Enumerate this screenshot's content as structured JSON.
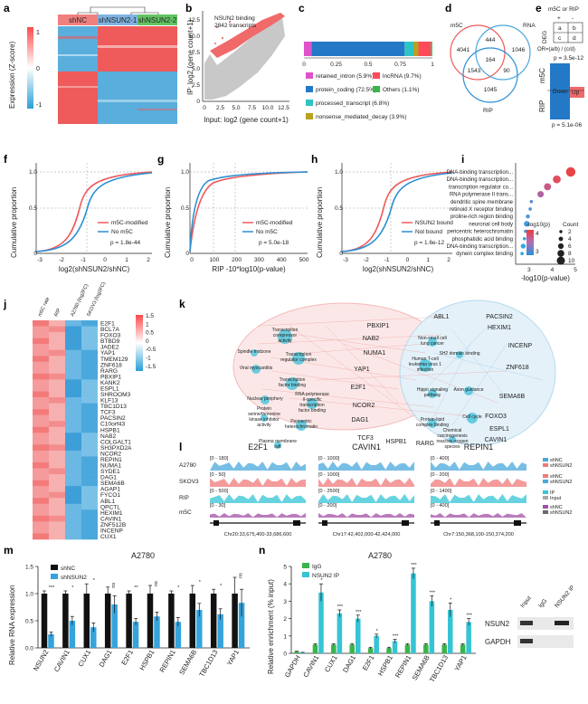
{
  "panels": {
    "a": {
      "letter": "a",
      "groups": [
        "shNC",
        "shNSUN2-1",
        "shNSUN2-2"
      ],
      "group_colors": [
        "#f08080",
        "#7fb3e0",
        "#62c462"
      ],
      "colorbar_label": "Expression (Z-score)",
      "colorbar_ticks": [
        "1",
        "0",
        "-1"
      ]
    },
    "b": {
      "letter": "b",
      "annotation_line1": "NSUN2 binding",
      "annotation_line2": "2842 transcripts",
      "xlabel": "Input: log2 (gene count+1)",
      "ylabel": "IP: log2 (gene count+1)",
      "xticks": [
        "0",
        "2.5",
        "5.0",
        "7.5",
        "10.0",
        "12.5"
      ],
      "yticks": [
        "0",
        "2.5",
        "5.0",
        "7.5",
        "10.0",
        "12.5"
      ]
    },
    "c": {
      "letter": "c",
      "xticks": [
        "0",
        "0.25",
        "0.5",
        "0.75",
        "1"
      ],
      "legend": [
        {
          "label": "retained_intron (5.9%)",
          "color": "#e052c9"
        },
        {
          "label": "lncRNA (9.7%)",
          "color": "#ff4a5a"
        },
        {
          "label": "protein_coding (72.5%)",
          "color": "#2479c6"
        },
        {
          "label": "Others (1.1%)",
          "color": "#3ab44b"
        },
        {
          "label": "processed_transcript (6.8%)",
          "color": "#2ec4c4"
        },
        {
          "label": "nonsense_mediated_decay (3.9%)",
          "color": "#b9a21e"
        }
      ]
    },
    "d": {
      "letter": "d",
      "sets": [
        "m5C",
        "RNA",
        "RIP"
      ],
      "numbers": [
        "4041",
        "444",
        "1046",
        "164",
        "1543",
        "90",
        "1045"
      ]
    },
    "e": {
      "letter": "e",
      "header": "m5C or RIP",
      "signs": [
        "+",
        "-"
      ],
      "row_label": "DEG",
      "cells": [
        "a",
        "b",
        "c",
        "d"
      ],
      "formula": "OR=(a/b) / (c/d)",
      "p_top": "p = 3.5e-12",
      "p_bottom": "p = 5.1e-06",
      "down": "Down",
      "up": "Up",
      "ylabel_top": "m5C",
      "ylabel_bottom": "RIP"
    },
    "f": {
      "letter": "f",
      "ylabel": "Cumulative proportion",
      "xlabel": "log2(shNSUN2/shNC)",
      "yticks": [
        "0",
        "0.5",
        "1.0"
      ],
      "xticks": [
        "-3",
        "-2",
        "-1",
        "0",
        "1",
        "2"
      ],
      "legend": [
        "m5C-modified",
        "No m5C"
      ],
      "pvalue": "p = 1.8e-44"
    },
    "g": {
      "letter": "g",
      "ylabel": "Cumulative proportion",
      "xlabel": "RIP -10*log10(p-value)",
      "yticks": [
        "0",
        "0.5",
        "1.0"
      ],
      "xticks": [
        "0",
        "100",
        "200",
        "300",
        "400",
        "500"
      ],
      "legend": [
        "m5C-modified",
        "No m5C"
      ],
      "pvalue": "p = 5.0e-18"
    },
    "h": {
      "letter": "h",
      "ylabel": "Cumulative proportion",
      "xlabel": "log2(shNSUN2/shNC)",
      "yticks": [
        "0",
        "0.5",
        "1.0"
      ],
      "xticks": [
        "-3",
        "-2",
        "-1",
        "0",
        "1",
        "2"
      ],
      "legend": [
        "NSUN2 bound",
        "Not bound"
      ],
      "pvalue": "p = 1.6e-12"
    },
    "i": {
      "letter": "i",
      "terms": [
        "DNA-binding transcription...",
        "DNA-binding transcription...",
        "transcription regulator co...",
        "RNA polymerase II trans...",
        "dendritic spine membrane",
        "retinoid X receptor binding",
        "proline-rich region binding",
        "neuronal cell body",
        "pericentric heterochromatin",
        "phosphatidic acid binding",
        "DNA-binding transcription...",
        "dynein complex binding"
      ],
      "xlabel": "-log10(p-value)",
      "xticks": [
        "3",
        "4",
        "5"
      ],
      "legend_color_title": "-log10(p)",
      "legend_color_ticks": [
        "4",
        "3"
      ],
      "legend_size_title": "Count",
      "legend_size_ticks": [
        "2",
        "4",
        "6",
        "8",
        "10"
      ]
    },
    "j": {
      "letter": "j",
      "columns": [
        "m5C rate",
        "RIP",
        "A2780 (log2FC)",
        "SKOV3 (log2FC)"
      ],
      "genes": [
        "E2F1",
        "BCL7A",
        "FOXO3",
        "BTBD9",
        "JADE2",
        "YAP1",
        "TMEM129",
        "ZNF618",
        "RARG",
        "PBXIP1",
        "KANK2",
        "ESPL1",
        "SHROOM3",
        "KLF13",
        "TBC1D13",
        "TCF3",
        "PACSIN2",
        "C10orf43",
        "HSPB1",
        "NAB2",
        "COLGALT1",
        "SH3PXD2A",
        "NCOR2",
        "REPIN1",
        "NUMA1",
        "SYDE1",
        "DAG1",
        "SEMA6B",
        "AGAP1",
        "FYCO1",
        "ABL1",
        "QPCTL",
        "HEXIM1",
        "CAVIN1",
        "ZNF512B",
        "INCENP",
        "CUX1"
      ],
      "colorbar_ticks": [
        "1.5",
        "1",
        "0.5",
        "0",
        "-0.5",
        "-1",
        "-1.5"
      ]
    },
    "k": {
      "letter": "k",
      "go_terms": [
        "Transcription corepressor activity",
        "Transcription regulator complex",
        "Spindle midzone",
        "Viral myocarditis",
        "Transcription factor binding",
        "RNA polymerase II-specific transcription factor binding",
        "Nuclear periphery",
        "Protein serine/threonine kinase inhibitor activity",
        "Pericentric heterochromatin",
        "Plasma membrane raft",
        "Non-small cell lung cancer",
        "Human T-cell leukemia virus 1 infection",
        "SH2 domain binding",
        "Hippo signaling pathway",
        "Axon guidance",
        "Cell cycle",
        "Protein-lipid complex binding",
        "Chemical carcinogenesis reactive oxygen species"
      ],
      "genes": [
        "ABL1",
        "PACSIN2",
        "HEXIM1",
        "PBXIP1",
        "NAB2",
        "NUMA1",
        "YAP1",
        "INCENP",
        "ZNF618",
        "E2F1",
        "NCOR2",
        "SEMA6B",
        "DAG1",
        "FOXO3",
        "ESPL1",
        "CAVIN1",
        "TCF3",
        "HSPB1",
        "RARG"
      ]
    },
    "l": {
      "letter": "l",
      "genes": [
        "E2F1",
        "CAVIN1",
        "REPIN1"
      ],
      "rows": [
        "A2780",
        "SKOV3",
        "RIP",
        "m5C"
      ],
      "ranges": [
        [
          "[0 - 180]",
          "[0 - 50]",
          "[0 - 500]",
          "[0 - 30]"
        ],
        [
          "[0 - 1000]",
          "[0 - 1000]",
          "[0 - 2500]",
          "[0 - 200]"
        ],
        [
          "[0 - 400]",
          "[0 - 200]",
          "[0 - 1400]",
          "[0 - 400]"
        ]
      ],
      "coords": [
        "Chr20:33,675,400-33,686,600",
        "Chr17:42,402,000-42,424,000",
        "Chr7:150,368,100-150,374,200"
      ],
      "legend": [
        [
          "shNC",
          "shNSUN2"
        ],
        [
          "shNC",
          "shNSUN2"
        ],
        [
          "IP",
          "Input"
        ],
        [
          "shNC",
          "shNSUN2"
        ]
      ]
    },
    "m": {
      "letter": "m",
      "title": "A2780",
      "legend": [
        "shNC",
        "shNSUN2"
      ],
      "ylabel": "Relative RNA expression",
      "yticks": [
        "0.0",
        "0.5",
        "1.0",
        "1.5"
      ]
    },
    "n": {
      "letter": "n",
      "title": "A2780",
      "legend": [
        "IgG",
        "NSUN2 IP"
      ],
      "ylabel": "Relative enrichment (% input)",
      "yticks": [
        "0",
        "1",
        "2",
        "3",
        "4",
        "5"
      ],
      "blot_cols": [
        "Input",
        "IgG",
        "NSUN2 IP"
      ],
      "blot_rows": [
        "NSUN2",
        "GAPDH"
      ]
    }
  },
  "chart_data": [
    {
      "type": "bar",
      "panel": "m",
      "title": "A2780",
      "categories": [
        "NSUN2",
        "CAVIN1",
        "CUX1",
        "DAG1",
        "E2F1",
        "HSPB1",
        "REPIN1",
        "SEMA6B",
        "TBC1D13",
        "YAP1"
      ],
      "series": [
        {
          "name": "shNC",
          "values": [
            1.0,
            1.0,
            1.0,
            1.0,
            1.0,
            1.0,
            1.0,
            1.0,
            1.0,
            1.0
          ],
          "errors": [
            0.05,
            0.05,
            0.18,
            0.12,
            0.05,
            0.15,
            0.05,
            0.15,
            0.08,
            0.3
          ]
        },
        {
          "name": "shNSUN2",
          "values": [
            0.25,
            0.5,
            0.38,
            0.8,
            0.48,
            0.58,
            0.48,
            0.7,
            0.62,
            0.83
          ],
          "errors": [
            0.04,
            0.08,
            0.08,
            0.16,
            0.06,
            0.08,
            0.08,
            0.12,
            0.1,
            0.25
          ]
        }
      ],
      "significance": [
        "***",
        "*",
        "*",
        "ns",
        "**",
        "ns",
        "*",
        "*",
        "*",
        "ns"
      ],
      "ylabel": "Relative RNA expression",
      "ylim": [
        0,
        1.5
      ]
    },
    {
      "type": "bar",
      "panel": "n",
      "title": "A2780",
      "categories": [
        "GAPDH",
        "CAVIN1",
        "CUX1",
        "DAG1",
        "E2F1",
        "HSPB1",
        "REPIN1",
        "SEMA6B",
        "TBC1D13",
        "YAP1"
      ],
      "series": [
        {
          "name": "IgG",
          "values": [
            0.1,
            0.5,
            0.5,
            0.5,
            0.3,
            0.3,
            0.5,
            0.5,
            0.5,
            0.5
          ],
          "errors": [
            0.02,
            0.05,
            0.05,
            0.05,
            0.05,
            0.05,
            0.05,
            0.05,
            0.05,
            0.05
          ]
        },
        {
          "name": "NSUN2 IP",
          "values": [
            0.05,
            3.5,
            2.3,
            2.0,
            1.0,
            0.7,
            4.6,
            3.0,
            2.5,
            1.8
          ],
          "errors": [
            0.01,
            0.5,
            0.2,
            0.2,
            0.1,
            0.1,
            0.3,
            0.3,
            0.4,
            0.2
          ]
        }
      ],
      "significance": [
        "",
        "*",
        "***",
        "***",
        "*",
        "***",
        "***",
        "***",
        "*",
        "***"
      ],
      "ylabel": "Relative enrichment (% input)",
      "ylim": [
        0,
        5
      ]
    },
    {
      "type": "bar",
      "panel": "c",
      "categories": [
        "retained_intron",
        "protein_coding",
        "processed_transcript",
        "nonsense_mediated_decay",
        "lncRNA",
        "Others"
      ],
      "values": [
        5.9,
        72.5,
        6.8,
        3.9,
        9.7,
        1.1
      ],
      "xlim": [
        0,
        1
      ]
    },
    {
      "type": "scatter",
      "panel": "i",
      "categories": [
        "DNA-binding transcription...",
        "DNA-binding transcription...",
        "transcription regulator co...",
        "RNA polymerase II trans...",
        "dendritic spine membrane",
        "retinoid X receptor binding",
        "proline-rich region binding",
        "neuronal cell body",
        "pericentric heterochromatin",
        "phosphatidic acid binding",
        "DNA-binding transcription...",
        "dynein complex binding"
      ],
      "x": [
        4.8,
        4.2,
        3.8,
        3.5,
        3.1,
        3.05,
        2.95,
        2.9,
        2.85,
        2.8,
        2.75,
        2.7
      ],
      "count": [
        10,
        8,
        7,
        6,
        2,
        2,
        3,
        5,
        2,
        2,
        4,
        2
      ],
      "xlabel": "-log10(p-value)"
    }
  ]
}
